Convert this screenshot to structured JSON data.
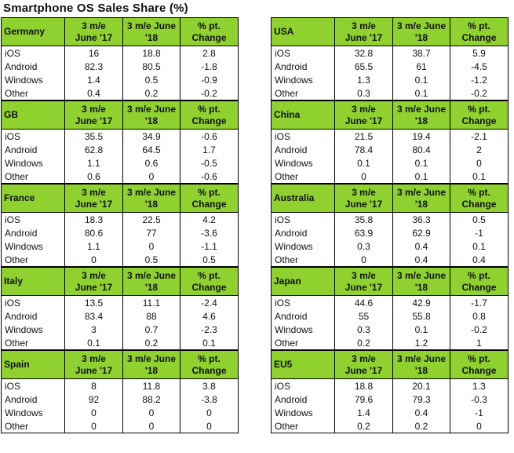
{
  "title": "Smartphone OS Sales Share (%)",
  "headers": [
    "3 m/e\nJune '17",
    "3 m/e June\n'18",
    "% pt.\nChange"
  ],
  "chart_data": {
    "type": "table",
    "title": "Smartphone OS Sales Share (%)",
    "columns": [
      "3 m/e June '17",
      "3 m/e June '18",
      "% pt. Change"
    ],
    "left": [
      {
        "country": "Germany",
        "rows": [
          {
            "os": "iOS",
            "values": [
              "16",
              "18.8",
              "2.8"
            ]
          },
          {
            "os": "Android",
            "values": [
              "82.3",
              "80.5",
              "-1.8"
            ]
          },
          {
            "os": "Windows",
            "values": [
              "1.4",
              "0.5",
              "-0.9"
            ]
          },
          {
            "os": "Other",
            "values": [
              "0.4",
              "0.2",
              "-0.2"
            ]
          }
        ]
      },
      {
        "country": "GB",
        "rows": [
          {
            "os": "iOS",
            "values": [
              "35.5",
              "34.9",
              "-0.6"
            ]
          },
          {
            "os": "Android",
            "values": [
              "62.8",
              "64.5",
              "1.7"
            ]
          },
          {
            "os": "Windows",
            "values": [
              "1.1",
              "0.6",
              "-0.5"
            ]
          },
          {
            "os": "Other",
            "values": [
              "0.6",
              "0",
              "-0.6"
            ]
          }
        ]
      },
      {
        "country": "France",
        "rows": [
          {
            "os": "iOS",
            "values": [
              "18.3",
              "22.5",
              "4.2"
            ]
          },
          {
            "os": "Android",
            "values": [
              "80.6",
              "77",
              "-3.6"
            ]
          },
          {
            "os": "Windows",
            "values": [
              "1.1",
              "0",
              "-1.1"
            ]
          },
          {
            "os": "Other",
            "values": [
              "0",
              "0.5",
              "0.5"
            ]
          }
        ]
      },
      {
        "country": "Italy",
        "rows": [
          {
            "os": "iOS",
            "values": [
              "13.5",
              "11.1",
              "-2.4"
            ]
          },
          {
            "os": "Android",
            "values": [
              "83.4",
              "88",
              "4.6"
            ]
          },
          {
            "os": "Windows",
            "values": [
              "3",
              "0.7",
              "-2.3"
            ]
          },
          {
            "os": "Other",
            "values": [
              "0.1",
              "0.2",
              "0.1"
            ]
          }
        ]
      },
      {
        "country": "Spain",
        "rows": [
          {
            "os": "iOS",
            "values": [
              "8",
              "11.8",
              "3.8"
            ]
          },
          {
            "os": "Android",
            "values": [
              "92",
              "88.2",
              "-3.8"
            ]
          },
          {
            "os": "Windows",
            "values": [
              "0",
              "0",
              "0"
            ]
          },
          {
            "os": "Other",
            "values": [
              "0",
              "0",
              "0"
            ]
          }
        ]
      }
    ],
    "right": [
      {
        "country": "USA",
        "rows": [
          {
            "os": "iOS",
            "values": [
              "32.8",
              "38.7",
              "5.9"
            ]
          },
          {
            "os": "Android",
            "values": [
              "65.5",
              "61",
              "-4.5"
            ]
          },
          {
            "os": "Windows",
            "values": [
              "1.3",
              "0.1",
              "-1.2"
            ]
          },
          {
            "os": "Other",
            "values": [
              "0.3",
              "0.1",
              "-0.2"
            ]
          }
        ]
      },
      {
        "country": "China",
        "rows": [
          {
            "os": "iOS",
            "values": [
              "21.5",
              "19.4",
              "-2.1"
            ]
          },
          {
            "os": "Android",
            "values": [
              "78.4",
              "80.4",
              "2"
            ]
          },
          {
            "os": "Windows",
            "values": [
              "0.1",
              "0.1",
              "0"
            ]
          },
          {
            "os": "Other",
            "values": [
              "0",
              "0.1",
              "0.1"
            ]
          }
        ]
      },
      {
        "country": "Australia",
        "rows": [
          {
            "os": "iOS",
            "values": [
              "35.8",
              "36.3",
              "0.5"
            ]
          },
          {
            "os": "Android",
            "values": [
              "63.9",
              "62.9",
              "-1"
            ]
          },
          {
            "os": "Windows",
            "values": [
              "0.3",
              "0.4",
              "0.1"
            ]
          },
          {
            "os": "Other",
            "values": [
              "0",
              "0.4",
              "0.4"
            ]
          }
        ]
      },
      {
        "country": "Japan",
        "rows": [
          {
            "os": "iOS",
            "values": [
              "44.6",
              "42.9",
              "-1.7"
            ]
          },
          {
            "os": "Android",
            "values": [
              "55",
              "55.8",
              "0.8"
            ]
          },
          {
            "os": "Windows",
            "values": [
              "0.3",
              "0.1",
              "-0.2"
            ]
          },
          {
            "os": "Other",
            "values": [
              "0.2",
              "1.2",
              "1"
            ]
          }
        ]
      },
      {
        "country": "EU5",
        "rows": [
          {
            "os": "iOS",
            "values": [
              "18.8",
              "20.1",
              "1.3"
            ]
          },
          {
            "os": "Android",
            "values": [
              "79.6",
              "79.3",
              "-0.3"
            ]
          },
          {
            "os": "Windows",
            "values": [
              "1.4",
              "0.4",
              "-1"
            ]
          },
          {
            "os": "Other",
            "values": [
              "0.2",
              "0.2",
              "0"
            ]
          }
        ]
      }
    ]
  },
  "colors": {
    "header_bg": "#8fd12f",
    "border": "#000000"
  }
}
